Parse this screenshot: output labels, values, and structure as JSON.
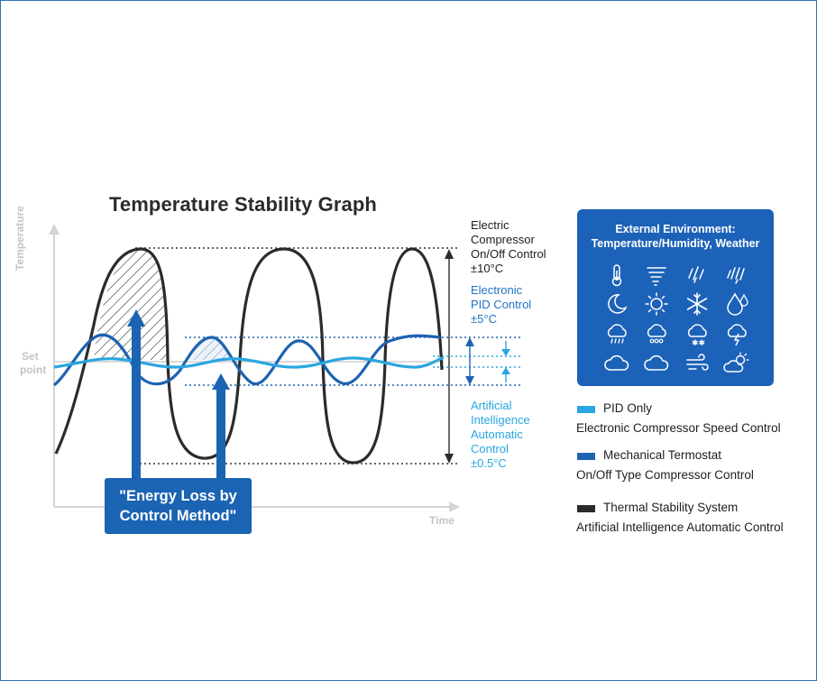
{
  "title": "Temperature Stability Graph",
  "axes": {
    "y_label": "Temperature",
    "x_label": "Time",
    "set_point_line1": "Set",
    "set_point_line2": "point"
  },
  "annotations": {
    "electric": [
      "Electric",
      "Compressor",
      "On/Off Control",
      "±10°C"
    ],
    "electronic": [
      "Electronic",
      "PID Control",
      "±5°C"
    ],
    "ai": [
      "Artificial",
      "Intelligence",
      "Automatic",
      "Control",
      "±0.5°C"
    ]
  },
  "energy_loss": [
    "\"Energy Loss by",
    "Control Method\""
  ],
  "environment": {
    "title_line1": "External Environment:",
    "title_line2": "Temperature/Humidity, Weather",
    "icons": [
      "thermometer-icon",
      "tornado-icon",
      "rain-streaks-icon",
      "heavy-rain-icon",
      "moon-icon",
      "sun-icon",
      "snowflake-icon",
      "humidity-drop-icon",
      "rain-cloud-icon",
      "drizzle-cloud-icon",
      "snow-cloud-icon",
      "thunder-cloud-icon",
      "cloud-icon",
      "cloudy-icon",
      "wind-icon",
      "partly-sunny-icon"
    ]
  },
  "legend": [
    {
      "name": "PID Only",
      "desc": "Electronic Compressor Speed Control",
      "color": "#2aa6e0"
    },
    {
      "name": "Mechanical Termostat",
      "desc": "On/Off Type Compressor Control",
      "color": "#1e63b0"
    },
    {
      "name": "Thermal Stability System",
      "desc": "Artificial Intelligence Automatic Control",
      "color": "#2b2b2b"
    }
  ],
  "colors": {
    "black_curve": "#2b2b2b",
    "mid_blue_curve": "#1e63b0",
    "light_blue_curve": "#2aa6e0",
    "panel": "#1c62b8"
  }
}
